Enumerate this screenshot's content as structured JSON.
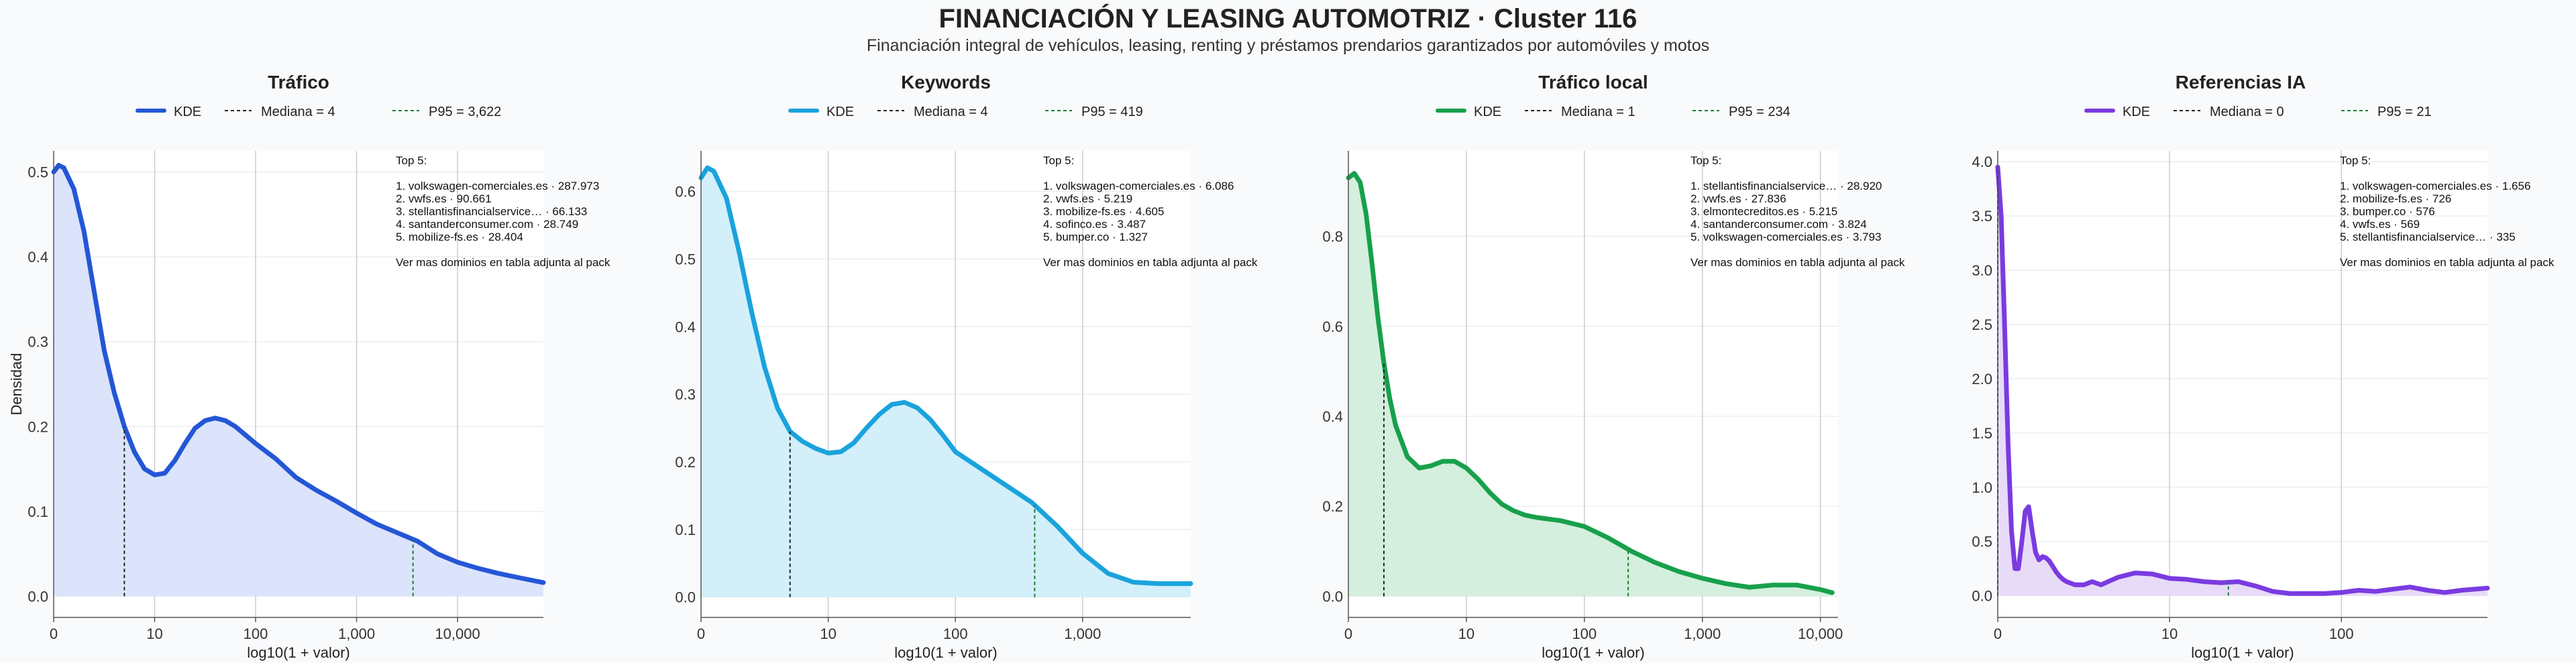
{
  "header": {
    "title": "FINANCIACIÓN Y LEASING AUTOMOTRIZ · Cluster 116",
    "subtitle": "Financiación integral de vehículos, leasing, renting y préstamos prendarios garantizados por automóviles y motos"
  },
  "shared": {
    "xlabel": "log10(1 + valor)",
    "ylabel": "Densidad",
    "legend_kde": "KDE",
    "top_heading": "Top 5:",
    "top_footer": "Ver mas dominios en tabla adjunta al pack"
  },
  "chart_data": [
    {
      "type": "area",
      "title": "Tráfico",
      "color": "#2456d6",
      "fill": "#d9e3fb",
      "legend": [
        "KDE",
        "Mediana = 4",
        "P95 = 3,622"
      ],
      "xscale": "log10(1+x)",
      "xlim": [
        0,
        4.85
      ],
      "ylim": [
        -0.025,
        0.525
      ],
      "yticks": [
        0.0,
        0.1,
        0.2,
        0.3,
        0.4,
        0.5
      ],
      "ytick_labels": [
        "0.0",
        "0.1",
        "0.2",
        "0.3",
        "0.4",
        "0.5"
      ],
      "xticks": [
        0,
        1,
        2,
        3,
        4
      ],
      "xtick_labels": [
        "0",
        "10",
        "100",
        "1,000",
        "10,000"
      ],
      "median": 4,
      "p95": 3622,
      "median_pos": 0.7,
      "p95_pos": 3.559,
      "x": [
        0,
        0.05,
        0.1,
        0.2,
        0.3,
        0.4,
        0.5,
        0.6,
        0.7,
        0.8,
        0.9,
        1.0,
        1.1,
        1.2,
        1.3,
        1.4,
        1.5,
        1.6,
        1.7,
        1.8,
        1.9,
        2.0,
        2.2,
        2.4,
        2.6,
        2.8,
        3.0,
        3.2,
        3.4,
        3.6,
        3.8,
        4.0,
        4.2,
        4.4,
        4.6,
        4.85
      ],
      "y": [
        0.5,
        0.508,
        0.505,
        0.48,
        0.43,
        0.36,
        0.29,
        0.24,
        0.2,
        0.17,
        0.15,
        0.143,
        0.145,
        0.16,
        0.18,
        0.198,
        0.207,
        0.21,
        0.207,
        0.2,
        0.19,
        0.18,
        0.162,
        0.14,
        0.125,
        0.112,
        0.098,
        0.085,
        0.075,
        0.065,
        0.05,
        0.04,
        0.033,
        0.027,
        0.022,
        0.016
      ],
      "top5": [
        "1. volkswagen-comerciales.es · 287.973",
        "2. vwfs.es · 90.661",
        "3. stellantisfinancialservice… · 66.133",
        "4. santanderconsumer.com · 28.749",
        "5. mobilize-fs.es · 28.404"
      ]
    },
    {
      "type": "area",
      "title": "Keywords",
      "color": "#1aa3dc",
      "fill": "#d1eefa",
      "legend": [
        "KDE",
        "Mediana = 4",
        "P95 = 419"
      ],
      "xscale": "log10(1+x)",
      "xlim": [
        0,
        3.85
      ],
      "ylim": [
        -0.03,
        0.66
      ],
      "yticks": [
        0.0,
        0.1,
        0.2,
        0.3,
        0.4,
        0.5,
        0.6
      ],
      "ytick_labels": [
        "0.0",
        "0.1",
        "0.2",
        "0.3",
        "0.4",
        "0.5",
        "0.6"
      ],
      "xticks": [
        0,
        1,
        2,
        3
      ],
      "xtick_labels": [
        "0",
        "10",
        "100",
        "1,000"
      ],
      "median": 4,
      "p95": 419,
      "median_pos": 0.7,
      "p95_pos": 2.623,
      "x": [
        0,
        0.05,
        0.1,
        0.2,
        0.3,
        0.4,
        0.5,
        0.6,
        0.7,
        0.8,
        0.9,
        1.0,
        1.1,
        1.2,
        1.3,
        1.4,
        1.5,
        1.6,
        1.7,
        1.8,
        1.9,
        2.0,
        2.2,
        2.4,
        2.6,
        2.8,
        3.0,
        3.2,
        3.4,
        3.6,
        3.85
      ],
      "y": [
        0.62,
        0.635,
        0.63,
        0.59,
        0.51,
        0.42,
        0.34,
        0.28,
        0.245,
        0.23,
        0.22,
        0.213,
        0.215,
        0.228,
        0.25,
        0.27,
        0.285,
        0.288,
        0.28,
        0.263,
        0.24,
        0.215,
        0.19,
        0.165,
        0.14,
        0.105,
        0.065,
        0.035,
        0.022,
        0.02,
        0.02
      ],
      "top5": [
        "1. volkswagen-comerciales.es · 6.086",
        "2. vwfs.es · 5.219",
        "3. mobilize-fs.es · 4.605",
        "4. sofinco.es · 3.487",
        "5. bumper.co · 1.327"
      ]
    },
    {
      "type": "area",
      "title": "Tráfico local",
      "color": "#17a04b",
      "fill": "#d2eedb",
      "legend": [
        "KDE",
        "Mediana = 1",
        "P95 = 234"
      ],
      "xscale": "log10(1+x)",
      "xlim": [
        0,
        4.15
      ],
      "ylim": [
        -0.047,
        0.99
      ],
      "yticks": [
        0.0,
        0.2,
        0.4,
        0.6,
        0.8
      ],
      "ytick_labels": [
        "0.0",
        "0.2",
        "0.4",
        "0.6",
        "0.8"
      ],
      "xticks": [
        0,
        1,
        2,
        3,
        4
      ],
      "xtick_labels": [
        "0",
        "10",
        "100",
        "1,000",
        "10,000"
      ],
      "median": 1,
      "p95": 234,
      "median_pos": 0.301,
      "p95_pos": 2.371,
      "x": [
        0,
        0.05,
        0.1,
        0.15,
        0.2,
        0.25,
        0.3,
        0.35,
        0.4,
        0.5,
        0.6,
        0.7,
        0.8,
        0.9,
        1.0,
        1.1,
        1.2,
        1.3,
        1.4,
        1.5,
        1.6,
        1.8,
        2.0,
        2.2,
        2.4,
        2.6,
        2.8,
        3.0,
        3.2,
        3.4,
        3.6,
        3.8,
        4.0,
        4.1
      ],
      "y": [
        0.93,
        0.94,
        0.92,
        0.85,
        0.74,
        0.62,
        0.52,
        0.44,
        0.38,
        0.31,
        0.285,
        0.29,
        0.3,
        0.3,
        0.285,
        0.26,
        0.23,
        0.205,
        0.19,
        0.18,
        0.175,
        0.168,
        0.155,
        0.13,
        0.1,
        0.075,
        0.055,
        0.04,
        0.028,
        0.02,
        0.025,
        0.025,
        0.015,
        0.008
      ],
      "top5": [
        "1. stellantisfinancialservice… · 28.920",
        "2. vwfs.es · 27.836",
        "3. elmontecreditos.es · 5.215",
        "4. santanderconsumer.com · 3.824",
        "5. volkswagen-comerciales.es · 3.793"
      ]
    },
    {
      "type": "area",
      "title": "Referencias IA",
      "color": "#7a3be0",
      "fill": "#e6d9f8",
      "legend": [
        "KDE",
        "Mediana = 0",
        "P95 = 21"
      ],
      "xscale": "log10(1+x)",
      "xlim": [
        0,
        2.85
      ],
      "ylim": [
        -0.2,
        4.1
      ],
      "yticks": [
        0.0,
        0.5,
        1.0,
        1.5,
        2.0,
        2.5,
        3.0,
        3.5,
        4.0
      ],
      "ytick_labels": [
        "0.0",
        "0.5",
        "1.0",
        "1.5",
        "2.0",
        "2.5",
        "3.0",
        "3.5",
        "4.0"
      ],
      "xticks": [
        0,
        1,
        2
      ],
      "xtick_labels": [
        "0",
        "10",
        "100"
      ],
      "median": 0,
      "p95": 21,
      "median_pos": 0,
      "p95_pos": 1.342,
      "x": [
        0,
        0.02,
        0.04,
        0.06,
        0.08,
        0.1,
        0.12,
        0.14,
        0.16,
        0.18,
        0.2,
        0.22,
        0.24,
        0.26,
        0.28,
        0.3,
        0.32,
        0.34,
        0.36,
        0.38,
        0.4,
        0.45,
        0.5,
        0.55,
        0.6,
        0.7,
        0.8,
        0.9,
        1.0,
        1.1,
        1.2,
        1.3,
        1.4,
        1.5,
        1.6,
        1.7,
        1.8,
        1.9,
        2.0,
        2.1,
        2.2,
        2.3,
        2.4,
        2.5,
        2.6,
        2.7,
        2.85
      ],
      "y": [
        3.95,
        3.5,
        2.5,
        1.4,
        0.6,
        0.25,
        0.25,
        0.5,
        0.78,
        0.82,
        0.6,
        0.4,
        0.33,
        0.36,
        0.35,
        0.32,
        0.27,
        0.22,
        0.18,
        0.15,
        0.13,
        0.1,
        0.1,
        0.13,
        0.1,
        0.17,
        0.21,
        0.2,
        0.16,
        0.15,
        0.13,
        0.12,
        0.13,
        0.09,
        0.04,
        0.02,
        0.02,
        0.02,
        0.03,
        0.05,
        0.04,
        0.06,
        0.08,
        0.05,
        0.03,
        0.05,
        0.07
      ],
      "top5": [
        "1. volkswagen-comerciales.es · 1.656",
        "2. mobilize-fs.es · 726",
        "3. bumper.co · 576",
        "4. vwfs.es · 569",
        "5. stellantisfinancialservice… · 335"
      ]
    }
  ]
}
